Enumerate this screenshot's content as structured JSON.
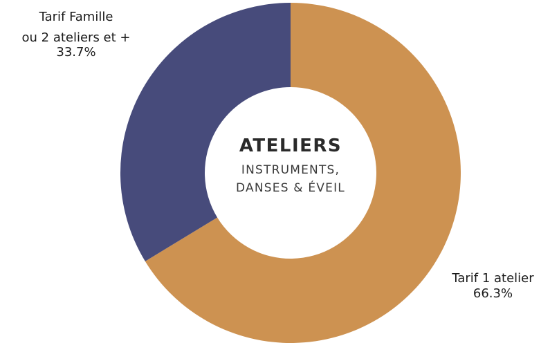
{
  "chart_data": {
    "type": "pie",
    "slices": [
      {
        "label_line1": "Tarif Famille",
        "label_line2": "ou 2 ateliers et +",
        "value": 33.7,
        "value_label": "33.7%",
        "color": "#474b7b"
      },
      {
        "label_line1": "Tarif 1 atelier",
        "value": 66.3,
        "value_label": "66.3%",
        "color": "#cd9251"
      }
    ],
    "center": {
      "title": "ATELIERS",
      "subtitle_line1": "INSTRUMENTS,",
      "subtitle_line2": "DANSES & ÉVEIL"
    }
  }
}
